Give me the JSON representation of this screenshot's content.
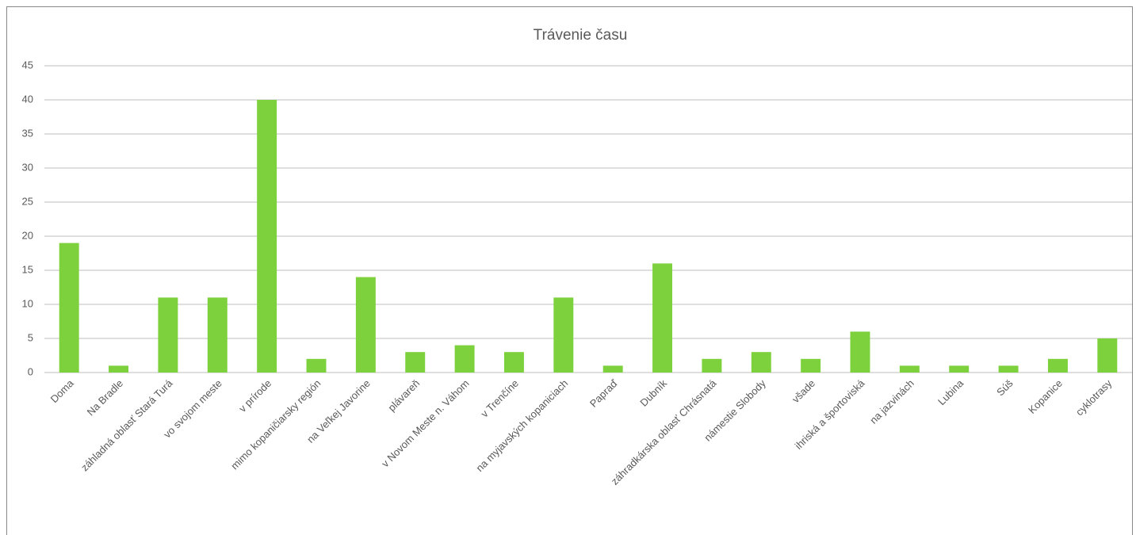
{
  "chart_data": {
    "type": "bar",
    "title": "Trávenie času",
    "categories": [
      "Doma",
      "Na Bradle",
      "záhladná oblasť Stará Turá",
      "vo svojom meste",
      "v prírode",
      "mimo kopaničiarsky región",
      "na Veľkej Javorine",
      "plávareň",
      "v Novom Meste n. Váhom",
      "v Trenčíne",
      "na myjavských kopaniciach",
      "Papraď",
      "Dubník",
      "záhradkárska oblasť Chrásnatá",
      "námestie Slobody",
      "všade",
      "ihriská a športoviská",
      "na jazvinách",
      "Lubina",
      "Súš",
      "Kopanice",
      "cyklotrasy"
    ],
    "values": [
      19,
      1,
      11,
      11,
      40,
      2,
      14,
      3,
      4,
      3,
      11,
      1,
      16,
      2,
      3,
      2,
      6,
      1,
      1,
      1,
      2,
      5
    ],
    "color": "#7dd13c",
    "ylim": [
      0,
      45
    ],
    "yticks": [
      0,
      5,
      10,
      15,
      20,
      25,
      30,
      35,
      40,
      45
    ],
    "grid": true
  }
}
